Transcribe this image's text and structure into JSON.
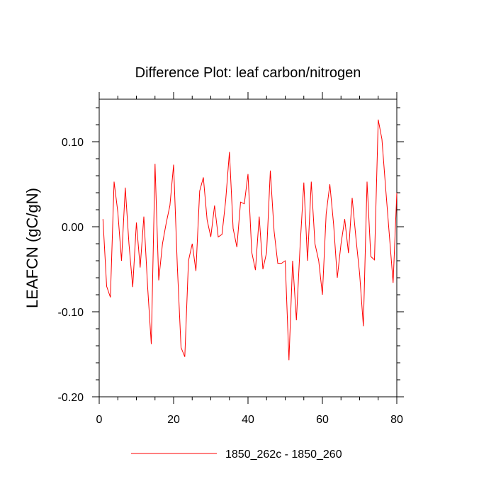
{
  "chart_data": {
    "type": "line",
    "title": "Difference Plot: leaf carbon/nitrogen",
    "xlabel": "",
    "ylabel": "LEAFCN  (gC/gN)",
    "xlim": [
      0,
      80
    ],
    "ylim": [
      -0.2,
      0.15
    ],
    "x_ticks": [
      0,
      20,
      40,
      60,
      80
    ],
    "x_tick_labels": [
      "0",
      "20",
      "40",
      "60",
      "80"
    ],
    "y_ticks": [
      -0.2,
      -0.1,
      0.0,
      0.1
    ],
    "y_tick_labels": [
      "-0.20",
      "-0.10",
      "0.00",
      "0.10"
    ],
    "x_minor_step": 5,
    "y_minor_step": 0.02,
    "line_color": "#ff0000",
    "legend": [
      {
        "label": "1850_262c - 1850_260",
        "color": "#ff0000"
      }
    ],
    "series": [
      {
        "name": "1850_262c - 1850_260",
        "x": [
          1,
          2,
          3,
          4,
          5,
          6,
          7,
          8,
          9,
          10,
          11,
          12,
          13,
          14,
          15,
          16,
          17,
          18,
          19,
          20,
          21,
          22,
          23,
          24,
          25,
          26,
          27,
          28,
          29,
          30,
          31,
          32,
          33,
          34,
          35,
          36,
          37,
          38,
          39,
          40,
          41,
          42,
          43,
          44,
          45,
          46,
          47,
          48,
          49,
          50,
          51,
          52,
          53,
          54,
          55,
          56,
          57,
          58,
          59,
          60,
          61,
          62,
          63,
          64,
          65,
          66,
          67,
          68,
          69,
          70,
          71,
          72,
          73,
          74,
          75,
          76,
          77,
          78,
          79,
          80
        ],
        "values": [
          0.009,
          -0.07,
          -0.083,
          0.053,
          0.017,
          -0.04,
          0.046,
          -0.02,
          -0.071,
          0.005,
          -0.048,
          0.012,
          -0.07,
          -0.138,
          0.074,
          -0.063,
          -0.02,
          0.004,
          0.025,
          0.073,
          -0.047,
          -0.142,
          -0.153,
          -0.04,
          -0.02,
          -0.052,
          0.042,
          0.058,
          0.008,
          -0.012,
          0.025,
          -0.012,
          -0.009,
          0.031,
          0.088,
          -0.002,
          -0.024,
          0.029,
          0.027,
          0.062,
          -0.03,
          -0.051,
          0.012,
          -0.05,
          -0.03,
          0.066,
          -0.005,
          -0.043,
          -0.043,
          -0.04,
          -0.157,
          -0.04,
          -0.11,
          -0.023,
          0.052,
          -0.04,
          0.053,
          -0.02,
          -0.04,
          -0.08,
          0.015,
          0.05,
          0.003,
          -0.06,
          -0.02,
          0.009,
          -0.031,
          0.034,
          -0.013,
          -0.055,
          -0.117,
          0.053,
          -0.035,
          -0.039,
          0.126,
          0.103,
          0.045,
          -0.01,
          -0.066,
          0.04
        ]
      }
    ]
  }
}
